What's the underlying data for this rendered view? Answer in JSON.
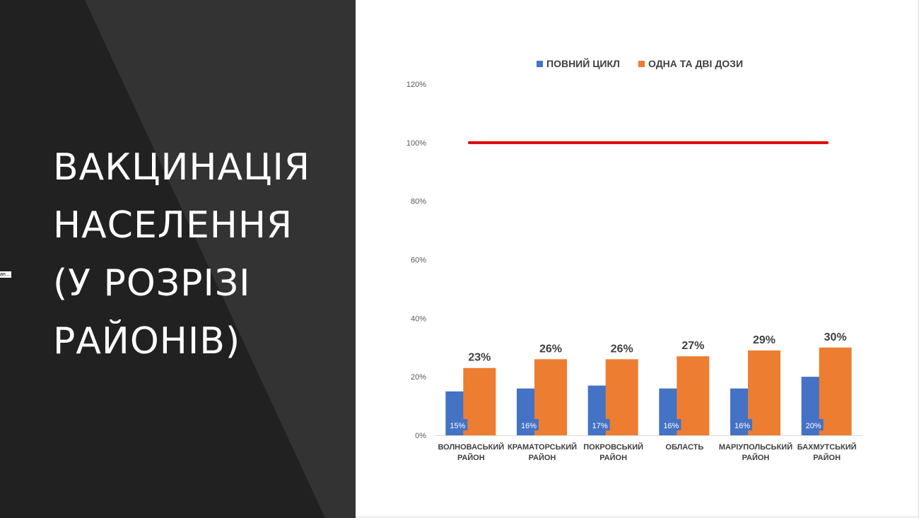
{
  "slide": {
    "title_lines": [
      "ВАКЦИНАЦІЯ",
      "НАСЕЛЕННЯ",
      "(У РОЗРІЗІ",
      "РАЙОНІВ)"
    ],
    "side_tag": "ан..."
  },
  "colors": {
    "left_bg": "#212121",
    "left_shape": "#333333",
    "blue": "#4472C4",
    "orange": "#ED7D31",
    "target_line": "#E00000"
  },
  "chart_data": {
    "type": "bar",
    "legend_position": "top",
    "categories": [
      [
        "ВОЛНОВАСЬКИЙ",
        "РАЙОН"
      ],
      [
        "КРАМАТОРСЬКИЙ",
        "РАЙОН"
      ],
      [
        "ПОКРОВСЬКИЙ",
        "РАЙОН"
      ],
      [
        "ОБЛАСТЬ"
      ],
      [
        "МАРІУПОЛЬСЬКИЙ",
        "РАЙОН"
      ],
      [
        "БАХМУТСЬКИЙ",
        "РАЙОН"
      ]
    ],
    "series": [
      {
        "name": "ПОВНИЙ ЦИКЛ",
        "color": "#4472C4",
        "values": [
          15,
          16,
          17,
          16,
          16,
          20
        ],
        "labels": [
          "15%",
          "16%",
          "17%",
          "16%",
          "16%",
          "20%"
        ]
      },
      {
        "name": "ОДНА ТА ДВІ ДОЗИ",
        "color": "#ED7D31",
        "values": [
          23,
          26,
          26,
          27,
          29,
          30
        ],
        "labels": [
          "23%",
          "26%",
          "26%",
          "27%",
          "29%",
          "30%"
        ]
      }
    ],
    "target_line": {
      "value": 100,
      "color": "#E00000"
    },
    "ylim": [
      0,
      120
    ],
    "yticks": [
      "0%",
      "20%",
      "40%",
      "60%",
      "80%",
      "100%",
      "120%"
    ],
    "ytick_values": [
      0,
      20,
      40,
      60,
      80,
      100,
      120
    ],
    "grid": false
  }
}
